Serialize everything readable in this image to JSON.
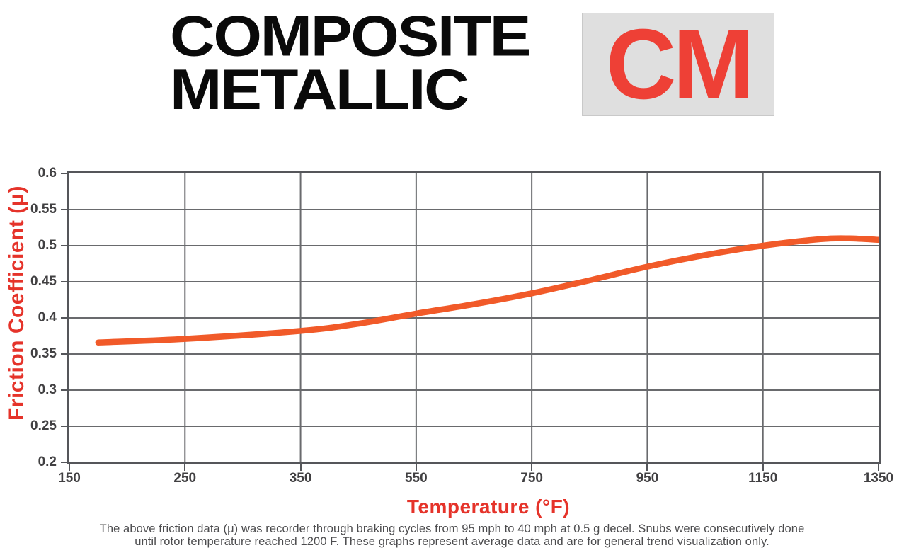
{
  "header": {
    "title_line1": "COMPOSITE",
    "title_line2": "METALLIC",
    "badge": "CM"
  },
  "chart_data": {
    "type": "line",
    "xlabel": "Temperature (°F)",
    "ylabel": "Friction Coefficient (μ)",
    "x_ticks": [
      150,
      250,
      350,
      550,
      750,
      950,
      1150,
      1350
    ],
    "y_ticks": [
      0.6,
      0.55,
      0.5,
      0.45,
      0.4,
      0.35,
      0.3,
      0.25,
      0.2
    ],
    "ylim": [
      0.2,
      0.6
    ],
    "grid": true,
    "legend": "none",
    "series": [
      {
        "name": "Composite Metallic friction curve",
        "color": "#F15A29",
        "points": [
          {
            "x": 175,
            "y": 0.366
          },
          {
            "x": 250,
            "y": 0.371
          },
          {
            "x": 350,
            "y": 0.382
          },
          {
            "x": 450,
            "y": 0.392
          },
          {
            "x": 550,
            "y": 0.406
          },
          {
            "x": 650,
            "y": 0.419
          },
          {
            "x": 750,
            "y": 0.434
          },
          {
            "x": 850,
            "y": 0.452
          },
          {
            "x": 950,
            "y": 0.471
          },
          {
            "x": 1050,
            "y": 0.487
          },
          {
            "x": 1150,
            "y": 0.5
          },
          {
            "x": 1250,
            "y": 0.509
          },
          {
            "x": 1300,
            "y": 0.51
          },
          {
            "x": 1350,
            "y": 0.508
          }
        ]
      }
    ]
  },
  "footer": {
    "line1": "The above friction data (μ) was recorder through braking cycles from 95 mph to 40 mph at 0.5 g decel. Snubs were consecutively done",
    "line2": "until rotor temperature reached 1200 F. These graphs represent average data and are for general trend visualization only."
  },
  "colors": {
    "title_black": "#0A0A0A",
    "badge_red": "#EE4036",
    "badge_background": "#DFDFDF",
    "axis_label_red": "#E5332A",
    "curve_orange": "#F15A29",
    "grid_gray": "#696A6D",
    "border_gray": "#55565A",
    "tick_label_gray": "#414042"
  }
}
